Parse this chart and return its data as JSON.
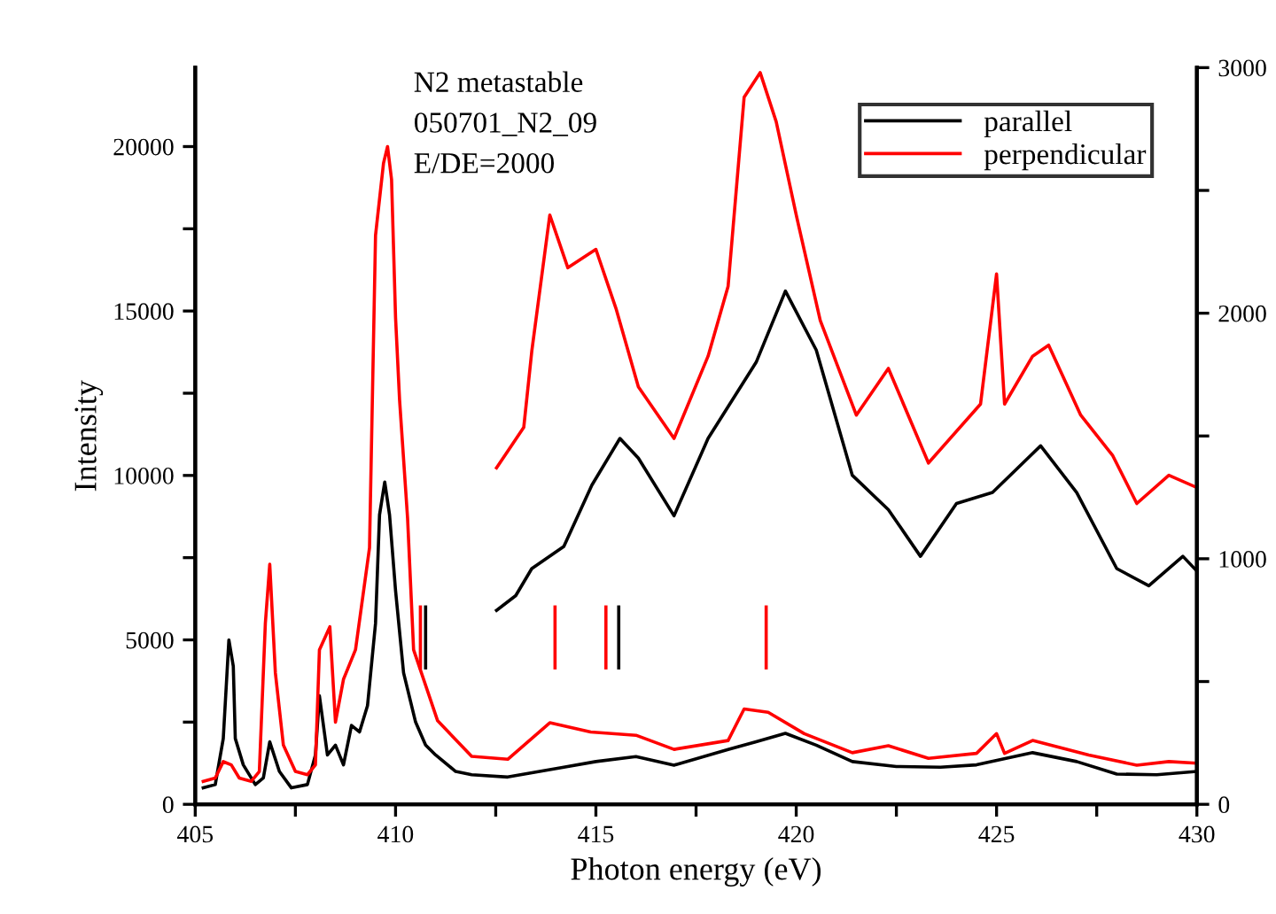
{
  "chart_data": {
    "type": "line",
    "xlabel": "Photon energy (eV)",
    "ylabel": "Intensity",
    "annotations": [
      "N2 metastable",
      "050701_N2_09",
      "E/DE=2000"
    ],
    "xlim": [
      405,
      430
    ],
    "xticks": [
      405,
      {
        "value": 407.5,
        "label": null
      },
      410,
      {
        "value": 412.5,
        "label": null
      },
      415,
      {
        "value": 417.5,
        "label": null
      },
      420,
      {
        "value": 422.5,
        "label": null
      },
      425,
      {
        "value": 427.5,
        "label": null
      },
      430
    ],
    "ylim": [
      0,
      22400
    ],
    "yticks": [
      0,
      {
        "value": 2500,
        "label": null
      },
      5000,
      {
        "value": 7500,
        "label": null
      },
      10000,
      {
        "value": 12500,
        "label": null
      },
      15000,
      {
        "value": 17500,
        "label": null
      },
      20000
    ],
    "y2lim": [
      0,
      3000
    ],
    "y2ticks": [
      0,
      {
        "value": 500,
        "label": null
      },
      1000,
      {
        "value": 1500,
        "label": null
      },
      2000,
      {
        "value": 2500,
        "label": null
      },
      3000
    ],
    "legend": "top right",
    "grid": false,
    "series": [
      {
        "name": "parallel",
        "color": "#000000",
        "x": [
          405.2,
          405.5,
          405.7,
          405.84,
          405.95,
          406.0,
          406.2,
          406.5,
          406.7,
          406.86,
          407.1,
          407.4,
          407.8,
          408.0,
          408.1,
          408.3,
          408.5,
          408.7,
          408.9,
          409.1,
          409.3,
          409.5,
          409.6,
          409.73,
          409.85,
          410.0,
          410.2,
          410.5,
          410.75,
          411.0,
          411.5,
          411.9,
          412.8,
          414.2,
          415.0,
          416.0,
          416.95,
          418.3,
          419.0,
          419.73,
          420.5,
          421.4,
          422.5,
          423.6,
          424.5,
          425.9,
          427.0,
          428.0,
          429.0,
          430.0
        ],
        "values": [
          500,
          600,
          2000,
          5000,
          4200,
          2000,
          1200,
          600,
          800,
          1900,
          1000,
          500,
          600,
          1500,
          3300,
          1500,
          1800,
          1200,
          2400,
          2200,
          3000,
          5500,
          8800,
          9800,
          8800,
          6500,
          4000,
          2500,
          1800,
          1500,
          1000,
          900,
          830,
          1130,
          1300,
          1450,
          1190,
          1670,
          1900,
          2160,
          1800,
          1300,
          1150,
          1130,
          1200,
          1570,
          1300,
          920,
          900,
          1000
        ]
      },
      {
        "name": "perpendicular",
        "color": "#ff0000",
        "x": [
          405.2,
          405.5,
          405.7,
          405.9,
          406.1,
          406.4,
          406.6,
          406.75,
          406.86,
          407.0,
          407.2,
          407.5,
          407.8,
          408.0,
          408.1,
          408.36,
          408.5,
          408.7,
          409.0,
          409.35,
          409.5,
          409.7,
          409.8,
          409.9,
          410.0,
          410.1,
          410.3,
          410.45,
          411.05,
          411.9,
          412.8,
          413.85,
          414.87,
          416.0,
          416.95,
          418.3,
          418.7,
          419.3,
          420.2,
          421.4,
          422.3,
          423.3,
          424.5,
          425.0,
          425.2,
          425.9,
          427.3,
          428.5,
          429.3,
          430.0
        ],
        "values": [
          700,
          800,
          1300,
          1200,
          800,
          700,
          1000,
          5500,
          7300,
          4000,
          1800,
          1000,
          900,
          1200,
          4700,
          5400,
          2500,
          3800,
          4700,
          7800,
          17300,
          19500,
          20000,
          19000,
          14800,
          12300,
          8700,
          4700,
          2540,
          1460,
          1370,
          2480,
          2200,
          2100,
          1670,
          1940,
          2900,
          2800,
          2150,
          1570,
          1780,
          1400,
          1550,
          2150,
          1550,
          1940,
          1500,
          1190,
          1300,
          1250
        ]
      },
      {
        "color": "#000000",
        "axis": "y2",
        "x": [
          412.52,
          413.0,
          413.4,
          414.2,
          414.9,
          415.6,
          416.06,
          416.95,
          417.8,
          419.0,
          419.73,
          420.5,
          421.4,
          422.3,
          423.1,
          424.0,
          424.9,
          426.1,
          427.0,
          428.0,
          428.8,
          429.65,
          430.0
        ],
        "values": [
          790,
          850,
          960,
          1050,
          1300,
          1490,
          1410,
          1175,
          1490,
          1800,
          2090,
          1850,
          1340,
          1200,
          1010,
          1225,
          1270,
          1460,
          1270,
          960,
          890,
          1010,
          950
        ]
      },
      {
        "color": "#ff0000",
        "axis": "y2",
        "x": [
          412.52,
          413.2,
          413.4,
          413.85,
          414.3,
          415.0,
          415.5,
          416.06,
          416.95,
          417.8,
          418.3,
          418.7,
          419.1,
          419.5,
          420.0,
          420.6,
          421.5,
          422.3,
          423.3,
          424.6,
          425.0,
          425.2,
          425.9,
          426.3,
          427.1,
          427.9,
          428.5,
          429.3,
          430.0
        ],
        "values": [
          1370,
          1535,
          1845,
          2400,
          2185,
          2260,
          2020,
          1700,
          1490,
          1825,
          2110,
          2880,
          2980,
          2780,
          2400,
          1970,
          1585,
          1775,
          1390,
          1630,
          2160,
          1630,
          1825,
          1870,
          1585,
          1420,
          1225,
          1340,
          1290
        ]
      },
      {
        "color": "#ff0000",
        "x": [
          410.62,
          410.62
        ],
        "values": [
          4150,
          6000
        ]
      },
      {
        "color": "#000000",
        "x": [
          410.75,
          410.75
        ],
        "values": [
          4150,
          6000
        ]
      },
      {
        "color": "#ff0000",
        "x": [
          413.98,
          413.98
        ],
        "values": [
          4150,
          6000
        ]
      },
      {
        "color": "#ff0000",
        "x": [
          415.25,
          415.25
        ],
        "values": [
          4150,
          6000
        ]
      },
      {
        "color": "#000000",
        "x": [
          415.57,
          415.57
        ],
        "values": [
          4150,
          6000
        ]
      },
      {
        "color": "#ff0000",
        "x": [
          419.25,
          419.25
        ],
        "values": [
          4150,
          6000
        ]
      }
    ]
  }
}
